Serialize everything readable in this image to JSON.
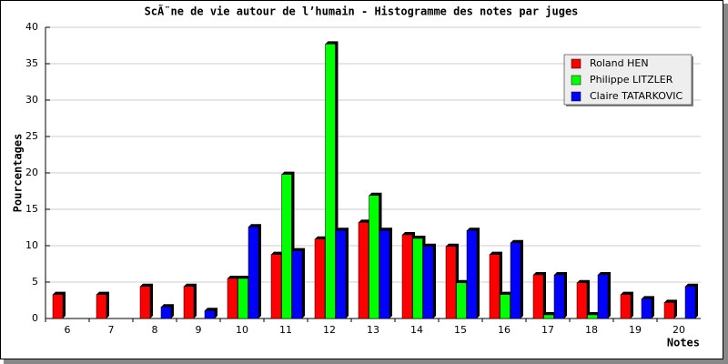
{
  "chart_data": {
    "type": "bar",
    "title": "ScÃ¨ne de vie autour de l’humain - Histogramme des notes par juges",
    "y_label": "Pourcentages",
    "x_label": "Notes",
    "categories": [
      "6",
      "7",
      "8",
      "9",
      "10",
      "11",
      "12",
      "13",
      "14",
      "15",
      "16",
      "17",
      "18",
      "19",
      "20"
    ],
    "series": [
      {
        "name": "Roland HEN",
        "color": "#ff0000",
        "values": [
          3.3,
          3.3,
          4.4,
          4.4,
          5.5,
          8.8,
          10.9,
          13.2,
          11.5,
          9.9,
          8.8,
          6,
          4.9,
          3.3,
          2.2
        ]
      },
      {
        "name": "Philippe LITZLER",
        "color": "#00ff00",
        "values": [
          0,
          0,
          0,
          0,
          5.5,
          19.8,
          37.7,
          16.9,
          11,
          4.9,
          3.3,
          0.5,
          0.5,
          0,
          0
        ]
      },
      {
        "name": "Claire TATARKOVIC",
        "color": "#0000ff",
        "values": [
          0,
          0,
          1.6,
          1.1,
          12.6,
          9.3,
          12.1,
          12.1,
          9.9,
          12.1,
          10.4,
          6,
          6,
          2.7,
          4.4
        ]
      }
    ],
    "ylim": [
      0,
      40
    ],
    "yticks": [
      0,
      5,
      10,
      15,
      20,
      25,
      30,
      35,
      40
    ],
    "grid": true,
    "legend": "top-right"
  }
}
